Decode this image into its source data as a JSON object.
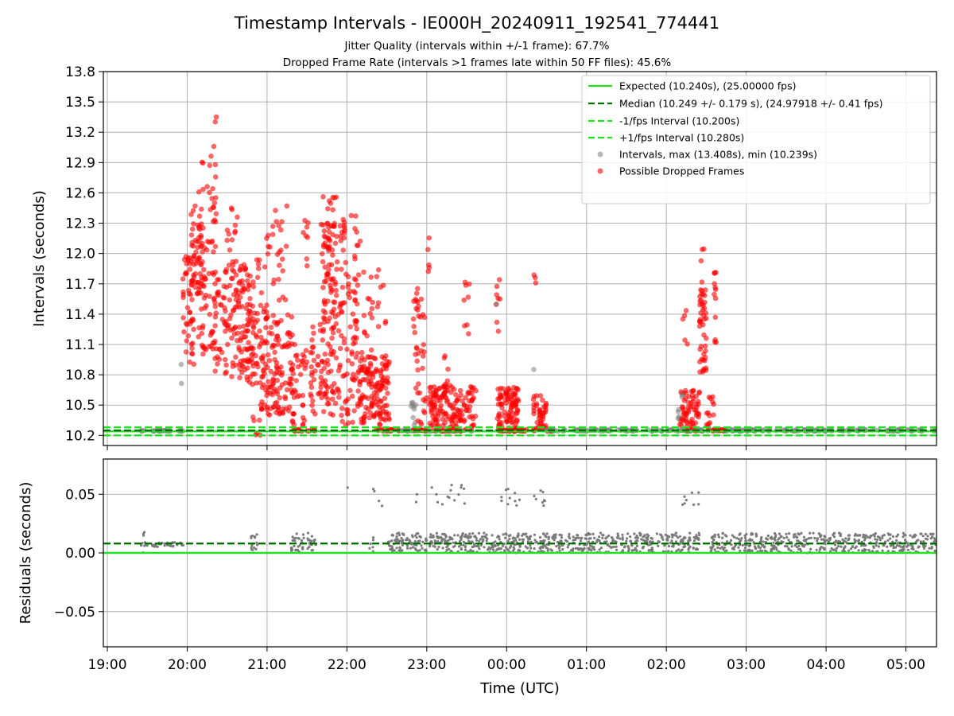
{
  "chart_data": [
    {
      "type": "scatter",
      "panel": "top",
      "title": "Timestamp Intervals - IE000H_20240911_192541_774441",
      "subtitle_lines": [
        "Jitter Quality (intervals within +/-1 frame): 67.7%",
        "Dropped Frame Rate (intervals >1 frames late within 50 FF files): 45.6%"
      ],
      "ylabel": "Intervals (seconds)",
      "ylim": [
        10.1,
        13.8
      ],
      "yticks": [
        "10.2",
        "10.5",
        "10.8",
        "11.1",
        "11.4",
        "11.7",
        "12.0",
        "12.3",
        "12.6",
        "12.9",
        "13.2",
        "13.5",
        "13.8"
      ],
      "xlim": [
        "18:57",
        "05:23"
      ],
      "grid": true,
      "legend_position": "top-right",
      "lines": [
        {
          "name": "Expected (10.240s), (25.00000 fps)",
          "y": 10.24,
          "color": "#22e022",
          "style": "solid"
        },
        {
          "name": "Median (10.249 +/- 0.179 s), (24.97918 +/- 0.41 fps)",
          "y": 10.249,
          "color": "#007000",
          "style": "dashed"
        },
        {
          "name": "-1/fps Interval (10.200s)",
          "y": 10.2,
          "color": "#22e022",
          "style": "dashed"
        },
        {
          "name": "+1/fps Interval (10.280s)",
          "y": 10.28,
          "color": "#22e022",
          "style": "dashed"
        }
      ],
      "scatter_series": [
        {
          "name": "Intervals, max (13.408s), min (10.239s)",
          "color": "#808080"
        },
        {
          "name": "Possible Dropped Frames",
          "color": "#ff0000"
        }
      ],
      "clusters": [
        {
          "series": "normal",
          "t0": "19:25",
          "t1": "19:57",
          "y_lo": 10.24,
          "y_hi": 10.25,
          "n": 30
        },
        {
          "series": "normal",
          "t0": "19:55",
          "t1": "19:56",
          "y_lo": 10.68,
          "y_hi": 10.92,
          "n": 2
        },
        {
          "series": "dropped",
          "t0": "19:56",
          "t1": "20:05",
          "y_lo": 10.9,
          "y_hi": 12.05,
          "n": 45
        },
        {
          "series": "dropped",
          "t0": "20:02",
          "t1": "20:12",
          "y_lo": 11.6,
          "y_hi": 12.5,
          "n": 50
        },
        {
          "series": "dropped",
          "t0": "20:06",
          "t1": "20:22",
          "y_lo": 11.0,
          "y_hi": 12.3,
          "n": 60
        },
        {
          "series": "dropped",
          "t0": "20:08",
          "t1": "20:12",
          "y_lo": 12.6,
          "y_hi": 13.25,
          "n": 4
        },
        {
          "series": "dropped",
          "t0": "20:15",
          "t1": "20:22",
          "y_lo": 12.3,
          "y_hi": 13.1,
          "n": 18
        },
        {
          "series": "dropped",
          "t0": "20:20",
          "t1": "20:22",
          "y_lo": 13.3,
          "y_hi": 13.41,
          "n": 2
        },
        {
          "series": "dropped",
          "t0": "20:20",
          "t1": "20:50",
          "y_lo": 10.75,
          "y_hi": 11.9,
          "n": 140
        },
        {
          "series": "dropped",
          "t0": "20:30",
          "t1": "20:40",
          "y_lo": 11.8,
          "y_hi": 12.45,
          "n": 14
        },
        {
          "series": "dropped",
          "t0": "20:40",
          "t1": "21:00",
          "y_lo": 10.7,
          "y_hi": 11.5,
          "n": 55
        },
        {
          "series": "dropped",
          "t0": "20:48",
          "t1": "20:55",
          "y_lo": 10.2,
          "y_hi": 10.4,
          "n": 6
        },
        {
          "series": "dropped",
          "t0": "20:52",
          "t1": "21:00",
          "y_lo": 11.6,
          "y_hi": 12.2,
          "n": 8
        },
        {
          "series": "dropped",
          "t0": "20:55",
          "t1": "21:20",
          "y_lo": 10.4,
          "y_hi": 11.4,
          "n": 130
        },
        {
          "series": "dropped",
          "t0": "21:00",
          "t1": "21:15",
          "y_lo": 11.5,
          "y_hi": 12.5,
          "n": 25
        },
        {
          "series": "dropped",
          "t0": "21:18",
          "t1": "21:30",
          "y_lo": 10.3,
          "y_hi": 11.1,
          "n": 35
        },
        {
          "series": "dropped",
          "t0": "21:18",
          "t1": "21:27",
          "y_lo": 10.24,
          "y_hi": 10.26,
          "n": 10
        },
        {
          "series": "dropped",
          "t0": "21:26",
          "t1": "21:32",
          "y_lo": 11.6,
          "y_hi": 12.6,
          "n": 8
        },
        {
          "series": "dropped",
          "t0": "21:30",
          "t1": "21:36",
          "y_lo": 10.24,
          "y_hi": 10.26,
          "n": 6
        },
        {
          "series": "dropped",
          "t0": "21:32",
          "t1": "21:45",
          "y_lo": 10.4,
          "y_hi": 11.3,
          "n": 40
        },
        {
          "series": "dropped",
          "t0": "21:40",
          "t1": "21:55",
          "y_lo": 10.4,
          "y_hi": 12.3,
          "n": 110
        },
        {
          "series": "dropped",
          "t0": "21:42",
          "t1": "21:52",
          "y_lo": 11.3,
          "y_hi": 12.6,
          "n": 25
        },
        {
          "series": "dropped",
          "t0": "21:55",
          "t1": "22:07",
          "y_lo": 10.3,
          "y_hi": 12.4,
          "n": 70
        },
        {
          "series": "dropped",
          "t0": "22:05",
          "t1": "22:15",
          "y_lo": 10.6,
          "y_hi": 12.3,
          "n": 30
        },
        {
          "series": "dropped",
          "t0": "22:08",
          "t1": "22:32",
          "y_lo": 10.3,
          "y_hi": 11.0,
          "n": 140
        },
        {
          "series": "dropped",
          "t0": "22:15",
          "t1": "22:30",
          "y_lo": 11.0,
          "y_hi": 11.9,
          "n": 18
        },
        {
          "series": "dropped",
          "t0": "22:22",
          "t1": "22:40",
          "y_lo": 10.24,
          "y_hi": 10.26,
          "n": 18
        },
        {
          "series": "normal",
          "t0": "22:40",
          "t1": "23:35",
          "y_lo": 10.24,
          "y_hi": 10.25,
          "n": 40
        },
        {
          "series": "normal",
          "t0": "22:48",
          "t1": "22:52",
          "y_lo": 10.3,
          "y_hi": 10.55,
          "n": 10
        },
        {
          "series": "dropped",
          "t0": "22:50",
          "t1": "23:00",
          "y_lo": 10.3,
          "y_hi": 11.7,
          "n": 40
        },
        {
          "series": "dropped",
          "t0": "22:58",
          "t1": "23:02",
          "y_lo": 11.7,
          "y_hi": 12.16,
          "n": 5
        },
        {
          "series": "dropped",
          "t0": "22:50",
          "t1": "23:00",
          "y_lo": 10.24,
          "y_hi": 10.26,
          "n": 10
        },
        {
          "series": "dropped",
          "t0": "23:02",
          "t1": "23:37",
          "y_lo": 10.24,
          "y_hi": 10.7,
          "n": 160
        },
        {
          "series": "dropped",
          "t0": "23:12",
          "t1": "23:16",
          "y_lo": 10.6,
          "y_hi": 11.0,
          "n": 8
        },
        {
          "series": "dropped",
          "t0": "23:28",
          "t1": "23:32",
          "y_lo": 11.2,
          "y_hi": 11.8,
          "n": 8
        },
        {
          "series": "dropped",
          "t0": "23:52",
          "t1": "23:55",
          "y_lo": 11.2,
          "y_hi": 11.75,
          "n": 8
        },
        {
          "series": "normal",
          "t0": "23:52",
          "t1": "23:54",
          "y_lo": 11.45,
          "y_hi": 11.5,
          "n": 1
        },
        {
          "series": "dropped",
          "t0": "23:53",
          "t1": "00:10",
          "y_lo": 10.24,
          "y_hi": 10.7,
          "n": 100
        },
        {
          "series": "dropped",
          "t0": "23:53",
          "t1": "00:15",
          "y_lo": 10.24,
          "y_hi": 10.26,
          "n": 40
        },
        {
          "series": "normal",
          "t0": "00:20",
          "t1": "00:22",
          "y_lo": 10.85,
          "y_hi": 10.9,
          "n": 1
        },
        {
          "series": "dropped",
          "t0": "00:20",
          "t1": "00:22",
          "y_lo": 11.7,
          "y_hi": 11.85,
          "n": 3
        },
        {
          "series": "dropped",
          "t0": "00:20",
          "t1": "00:30",
          "y_lo": 10.24,
          "y_hi": 10.6,
          "n": 45
        },
        {
          "series": "dropped",
          "t0": "00:30",
          "t1": "00:35",
          "y_lo": 10.24,
          "y_hi": 10.26,
          "n": 12
        },
        {
          "series": "normal",
          "t0": "00:30",
          "t1": "05:23",
          "y_lo": 10.24,
          "y_hi": 10.26,
          "n": 260
        },
        {
          "series": "normal",
          "t0": "02:08",
          "t1": "02:15",
          "y_lo": 10.3,
          "y_hi": 10.65,
          "n": 10
        },
        {
          "series": "dropped",
          "t0": "02:10",
          "t1": "02:25",
          "y_lo": 10.24,
          "y_hi": 10.65,
          "n": 60
        },
        {
          "series": "dropped",
          "t0": "02:12",
          "t1": "02:16",
          "y_lo": 10.9,
          "y_hi": 11.5,
          "n": 5
        },
        {
          "series": "dropped",
          "t0": "02:25",
          "t1": "02:30",
          "y_lo": 10.8,
          "y_hi": 11.75,
          "n": 45
        },
        {
          "series": "dropped",
          "t0": "02:26",
          "t1": "02:29",
          "y_lo": 11.9,
          "y_hi": 12.1,
          "n": 3
        },
        {
          "series": "dropped",
          "t0": "02:30",
          "t1": "02:36",
          "y_lo": 10.24,
          "y_hi": 10.6,
          "n": 15
        },
        {
          "series": "dropped",
          "t0": "02:35",
          "t1": "02:38",
          "y_lo": 11.1,
          "y_hi": 11.85,
          "n": 12
        },
        {
          "series": "dropped",
          "t0": "02:34",
          "t1": "02:44",
          "y_lo": 10.24,
          "y_hi": 10.26,
          "n": 15
        }
      ]
    },
    {
      "type": "scatter",
      "panel": "bottom",
      "ylabel": "Residuals (seconds)",
      "xlabel": "Time (UTC)",
      "ylim": [
        -0.08,
        0.08
      ],
      "yticks": [
        "−0.05",
        "0.00",
        "0.05"
      ],
      "xticks": [
        "19:00",
        "20:00",
        "21:00",
        "22:00",
        "23:00",
        "00:00",
        "01:00",
        "02:00",
        "03:00",
        "04:00",
        "05:00"
      ],
      "xlim": [
        "18:57",
        "05:23"
      ],
      "grid": true,
      "lines": [
        {
          "y": 0.0,
          "color": "#22e022",
          "style": "solid"
        },
        {
          "y": 0.008,
          "color": "#007000",
          "style": "dashed"
        }
      ],
      "clusters": [
        {
          "t0": "19:25",
          "t1": "19:57",
          "y_lo": 0.005,
          "y_hi": 0.009,
          "n": 40
        },
        {
          "t0": "19:26",
          "t1": "19:28",
          "y_lo": 0.0,
          "y_hi": 0.02,
          "n": 4
        },
        {
          "t0": "20:48",
          "t1": "20:53",
          "y_lo": 0.0,
          "y_hi": 0.017,
          "n": 15
        },
        {
          "t0": "21:18",
          "t1": "21:28",
          "y_lo": 0.0,
          "y_hi": 0.017,
          "n": 30
        },
        {
          "t0": "21:30",
          "t1": "21:37",
          "y_lo": 0.0,
          "y_hi": 0.017,
          "n": 20
        },
        {
          "t0": "22:00",
          "t1": "22:02",
          "y_lo": 0.05,
          "y_hi": 0.057,
          "n": 1
        },
        {
          "t0": "22:15",
          "t1": "22:28",
          "y_lo": 0.04,
          "y_hi": 0.055,
          "n": 4
        },
        {
          "t0": "22:17",
          "t1": "22:20",
          "y_lo": 0.0,
          "y_hi": 0.017,
          "n": 6
        },
        {
          "t0": "22:30",
          "t1": "23:00",
          "y_lo": 0.0,
          "y_hi": 0.017,
          "n": 90
        },
        {
          "t0": "22:50",
          "t1": "22:55",
          "y_lo": 0.04,
          "y_hi": 0.05,
          "n": 2
        },
        {
          "t0": "23:02",
          "t1": "23:30",
          "y_lo": 0.04,
          "y_hi": 0.058,
          "n": 14
        },
        {
          "t0": "23:00",
          "t1": "23:55",
          "y_lo": 0.0,
          "y_hi": 0.017,
          "n": 170
        },
        {
          "t0": "23:55",
          "t1": "00:10",
          "y_lo": 0.04,
          "y_hi": 0.058,
          "n": 10
        },
        {
          "t0": "00:20",
          "t1": "00:30",
          "y_lo": 0.04,
          "y_hi": 0.057,
          "n": 8
        },
        {
          "t0": "23:55",
          "t1": "02:25",
          "y_lo": 0.0,
          "y_hi": 0.017,
          "n": 420
        },
        {
          "t0": "02:10",
          "t1": "02:25",
          "y_lo": 0.04,
          "y_hi": 0.057,
          "n": 8
        },
        {
          "t0": "02:33",
          "t1": "05:23",
          "y_lo": 0.0,
          "y_hi": 0.017,
          "n": 480
        }
      ]
    }
  ]
}
